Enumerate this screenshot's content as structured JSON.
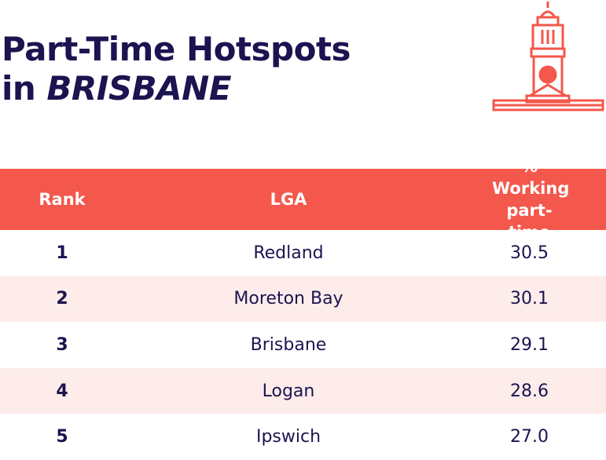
{
  "header": {
    "title_line1": "Part-Time Hotspots",
    "title_line2_prefix": "in",
    "title_line2_emphasis": "BRISBANE"
  },
  "table": {
    "columns": [
      "Rank",
      "LGA",
      "% Working part-time"
    ],
    "rows": [
      [
        "1",
        "Redland",
        "30.5"
      ],
      [
        "2",
        "Moreton Bay",
        "30.1"
      ],
      [
        "3",
        "Brisbane",
        "29.1"
      ],
      [
        "4",
        "Logan",
        "28.6"
      ],
      [
        "5",
        "Ipswich",
        "27.0"
      ]
    ]
  }
}
